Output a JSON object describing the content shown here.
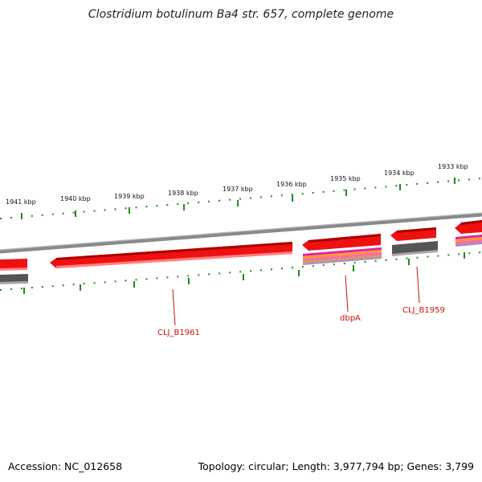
{
  "title": "Clostridium botulinum Ba4 str. 657, complete genome",
  "footer": {
    "accession": "Accession: NC_012658",
    "topology": "Topology: circular; Length: 3,977,794 bp; Genes: 3,799"
  },
  "ticks": [
    "1941 kbp",
    "1940 kbp",
    "1939 kbp",
    "1938 kbp",
    "1937 kbp",
    "1936 kbp",
    "1935 kbp",
    "1934 kbp",
    "1933 kbp"
  ],
  "gene_labels": [
    "CLJ_B1961",
    "dbpA",
    "CLJ_B1959"
  ],
  "colors": {
    "gene_forward": "#ee1111",
    "gene_dark": "#555555",
    "backbone": "#888888",
    "ticks": "#228822",
    "label": "#cc1111",
    "magenta": "#dd22aa",
    "orange": "#ff9922"
  }
}
